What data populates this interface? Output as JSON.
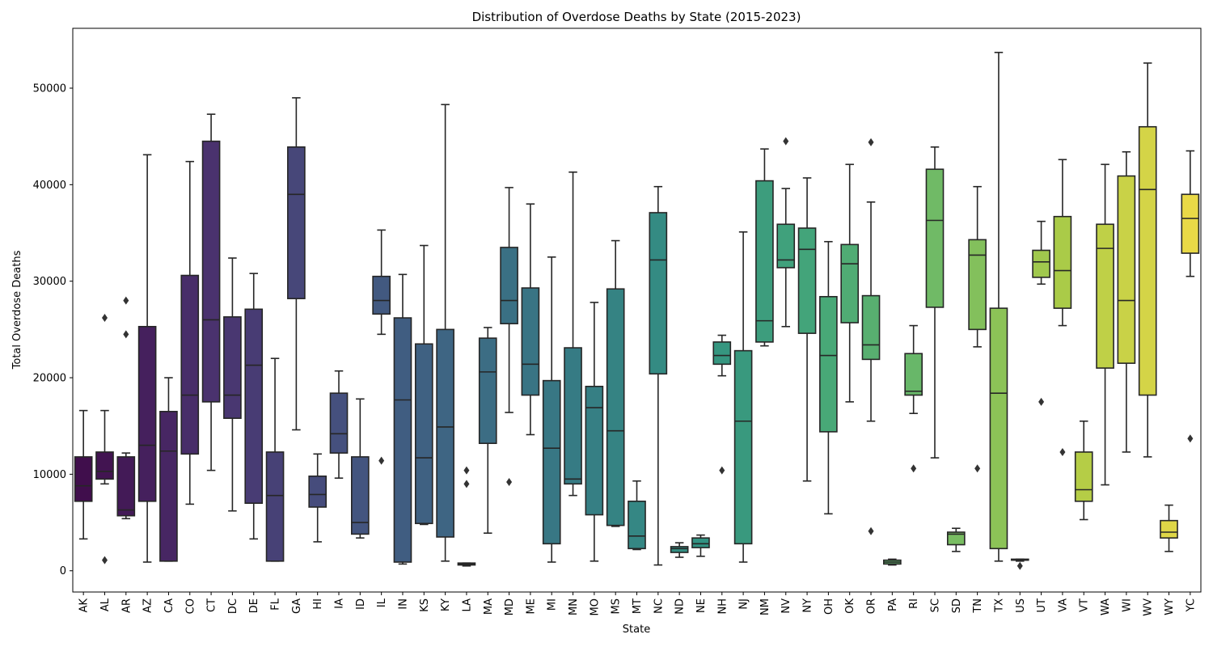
{
  "chart_data": {
    "type": "box",
    "title": "Distribution of Overdose Deaths by State (2015-2023)",
    "xlabel": "State",
    "ylabel": "Total Overdose Deaths",
    "ylim": [
      -2200,
      56200
    ],
    "yticks": [
      0,
      10000,
      20000,
      30000,
      40000,
      50000
    ],
    "ytick_labels": [
      "0",
      "10000",
      "20000",
      "30000",
      "40000",
      "50000"
    ],
    "grid": false,
    "legend": "none",
    "colormap": "viridis",
    "categories": [
      "AK",
      "AL",
      "AR",
      "AZ",
      "CA",
      "CO",
      "CT",
      "DC",
      "DE",
      "FL",
      "GA",
      "HI",
      "IA",
      "ID",
      "IL",
      "IN",
      "KS",
      "KY",
      "LA",
      "MA",
      "MD",
      "ME",
      "MI",
      "MN",
      "MO",
      "MS",
      "MT",
      "NC",
      "ND",
      "NE",
      "NH",
      "NJ",
      "NM",
      "NV",
      "NY",
      "OH",
      "OK",
      "OR",
      "PA",
      "RI",
      "SC",
      "SD",
      "TN",
      "TX",
      "US",
      "UT",
      "VA",
      "VT",
      "WA",
      "WI",
      "WV",
      "WY",
      "YC"
    ],
    "boxes": [
      {
        "state": "AK",
        "whislo": 3300,
        "q1": 7200,
        "med": 8800,
        "q3": 11800,
        "whishi": 16600,
        "fliers": []
      },
      {
        "state": "AL",
        "whislo": 9000,
        "q1": 9500,
        "med": 10300,
        "q3": 12300,
        "whishi": 16600,
        "fliers": [
          26200,
          1100
        ]
      },
      {
        "state": "AR",
        "whislo": 5400,
        "q1": 5700,
        "med": 6300,
        "q3": 11800,
        "whishi": 12200,
        "fliers": [
          28000,
          24500
        ]
      },
      {
        "state": "AZ",
        "whislo": 900,
        "q1": 7200,
        "med": 13000,
        "q3": 25300,
        "whishi": 43100,
        "fliers": []
      },
      {
        "state": "CA",
        "whislo": 1000,
        "q1": 1000,
        "med": 12400,
        "q3": 16500,
        "whishi": 20000,
        "fliers": []
      },
      {
        "state": "CO",
        "whislo": 6900,
        "q1": 12100,
        "med": 18200,
        "q3": 30600,
        "whishi": 42400,
        "fliers": []
      },
      {
        "state": "CT",
        "whislo": 10400,
        "q1": 17500,
        "med": 26000,
        "q3": 44500,
        "whishi": 47300,
        "fliers": []
      },
      {
        "state": "DC",
        "whislo": 6200,
        "q1": 15800,
        "med": 18200,
        "q3": 26300,
        "whishi": 32400,
        "fliers": []
      },
      {
        "state": "DE",
        "whislo": 3300,
        "q1": 7000,
        "med": 21300,
        "q3": 27100,
        "whishi": 30800,
        "fliers": []
      },
      {
        "state": "FL",
        "whislo": 1000,
        "q1": 1000,
        "med": 7800,
        "q3": 12300,
        "whishi": 22000,
        "fliers": []
      },
      {
        "state": "GA",
        "whislo": 14600,
        "q1": 28200,
        "med": 39000,
        "q3": 43900,
        "whishi": 49000,
        "fliers": []
      },
      {
        "state": "HI",
        "whislo": 3000,
        "q1": 6600,
        "med": 7900,
        "q3": 9800,
        "whishi": 12100,
        "fliers": []
      },
      {
        "state": "IA",
        "whislo": 9600,
        "q1": 12200,
        "med": 14200,
        "q3": 18400,
        "whishi": 20700,
        "fliers": []
      },
      {
        "state": "ID",
        "whislo": 3400,
        "q1": 3800,
        "med": 5000,
        "q3": 11800,
        "whishi": 17800,
        "fliers": []
      },
      {
        "state": "IL",
        "whislo": 24500,
        "q1": 26600,
        "med": 28000,
        "q3": 30500,
        "whishi": 35300,
        "fliers": [
          11400
        ]
      },
      {
        "state": "IN",
        "whislo": 700,
        "q1": 900,
        "med": 17700,
        "q3": 26200,
        "whishi": 30700,
        "fliers": []
      },
      {
        "state": "KS",
        "whislo": 4800,
        "q1": 4900,
        "med": 11700,
        "q3": 23500,
        "whishi": 33700,
        "fliers": []
      },
      {
        "state": "KY",
        "whislo": 1000,
        "q1": 3500,
        "med": 14900,
        "q3": 25000,
        "whishi": 48300,
        "fliers": []
      },
      {
        "state": "LA",
        "whislo": 500,
        "q1": 600,
        "med": 700,
        "q3": 800,
        "whishi": 800,
        "fliers": [
          10400,
          9000
        ]
      },
      {
        "state": "MA",
        "whislo": 3900,
        "q1": 13200,
        "med": 20600,
        "q3": 24100,
        "whishi": 25200,
        "fliers": []
      },
      {
        "state": "MD",
        "whislo": 16400,
        "q1": 25600,
        "med": 28000,
        "q3": 33500,
        "whishi": 39700,
        "fliers": [
          9200
        ]
      },
      {
        "state": "ME",
        "whislo": 14100,
        "q1": 18200,
        "med": 21400,
        "q3": 29300,
        "whishi": 38000,
        "fliers": []
      },
      {
        "state": "MI",
        "whislo": 900,
        "q1": 2800,
        "med": 12700,
        "q3": 19700,
        "whishi": 32500,
        "fliers": []
      },
      {
        "state": "MN",
        "whislo": 7800,
        "q1": 9000,
        "med": 9500,
        "q3": 23100,
        "whishi": 41300,
        "fliers": []
      },
      {
        "state": "MO",
        "whislo": 1000,
        "q1": 5800,
        "med": 16900,
        "q3": 19100,
        "whishi": 27800,
        "fliers": []
      },
      {
        "state": "MS",
        "whislo": 4600,
        "q1": 4700,
        "med": 14500,
        "q3": 29200,
        "whishi": 34200,
        "fliers": []
      },
      {
        "state": "MT",
        "whislo": 2200,
        "q1": 2300,
        "med": 3600,
        "q3": 7200,
        "whishi": 9300,
        "fliers": []
      },
      {
        "state": "NC",
        "whislo": 600,
        "q1": 20400,
        "med": 32200,
        "q3": 37100,
        "whishi": 39800,
        "fliers": []
      },
      {
        "state": "ND",
        "whislo": 1400,
        "q1": 1900,
        "med": 2300,
        "q3": 2500,
        "whishi": 2900,
        "fliers": []
      },
      {
        "state": "NE",
        "whislo": 1500,
        "q1": 2400,
        "med": 2800,
        "q3": 3400,
        "whishi": 3700,
        "fliers": []
      },
      {
        "state": "NH",
        "whislo": 20200,
        "q1": 21400,
        "med": 22300,
        "q3": 23700,
        "whishi": 24400,
        "fliers": [
          10400
        ]
      },
      {
        "state": "NJ",
        "whislo": 900,
        "q1": 2800,
        "med": 15500,
        "q3": 22800,
        "whishi": 35100,
        "fliers": []
      },
      {
        "state": "NM",
        "whislo": 23300,
        "q1": 23700,
        "med": 25900,
        "q3": 40400,
        "whishi": 43700,
        "fliers": []
      },
      {
        "state": "NV",
        "whislo": 25300,
        "q1": 31400,
        "med": 32200,
        "q3": 35900,
        "whishi": 39600,
        "fliers": [
          44500
        ]
      },
      {
        "state": "NY",
        "whislo": 9300,
        "q1": 24600,
        "med": 33300,
        "q3": 35500,
        "whishi": 40700,
        "fliers": []
      },
      {
        "state": "OH",
        "whislo": 5900,
        "q1": 14400,
        "med": 22300,
        "q3": 28400,
        "whishi": 34100,
        "fliers": []
      },
      {
        "state": "OK",
        "whislo": 17500,
        "q1": 25700,
        "med": 31800,
        "q3": 33800,
        "whishi": 42100,
        "fliers": []
      },
      {
        "state": "OR",
        "whislo": 15500,
        "q1": 21900,
        "med": 23400,
        "q3": 28500,
        "whishi": 38200,
        "fliers": [
          44400,
          4100
        ]
      },
      {
        "state": "PA",
        "whislo": 600,
        "q1": 700,
        "med": 900,
        "q3": 1100,
        "whishi": 1200,
        "fliers": []
      },
      {
        "state": "RI",
        "whislo": 16300,
        "q1": 18200,
        "med": 18600,
        "q3": 22500,
        "whishi": 25400,
        "fliers": [
          10600
        ]
      },
      {
        "state": "SC",
        "whislo": 11700,
        "q1": 27300,
        "med": 36300,
        "q3": 41600,
        "whishi": 43900,
        "fliers": []
      },
      {
        "state": "SD",
        "whislo": 2000,
        "q1": 2700,
        "med": 3800,
        "q3": 4000,
        "whishi": 4400,
        "fliers": []
      },
      {
        "state": "TN",
        "whislo": 23200,
        "q1": 25000,
        "med": 32700,
        "q3": 34300,
        "whishi": 39800,
        "fliers": [
          10600
        ]
      },
      {
        "state": "TX",
        "whislo": 1000,
        "q1": 2300,
        "med": 18400,
        "q3": 27200,
        "whishi": 53700,
        "fliers": []
      },
      {
        "state": "US",
        "whislo": 1000,
        "q1": 1100,
        "med": 1100,
        "q3": 1200,
        "whishi": 1200,
        "fliers": [
          500
        ]
      },
      {
        "state": "UT",
        "whislo": 29700,
        "q1": 30400,
        "med": 32000,
        "q3": 33200,
        "whishi": 36200,
        "fliers": [
          17500
        ]
      },
      {
        "state": "VA",
        "whislo": 25400,
        "q1": 27200,
        "med": 31100,
        "q3": 36700,
        "whishi": 42600,
        "fliers": [
          12300
        ]
      },
      {
        "state": "VT",
        "whislo": 5300,
        "q1": 7200,
        "med": 8400,
        "q3": 12300,
        "whishi": 15500,
        "fliers": []
      },
      {
        "state": "WA",
        "whislo": 8900,
        "q1": 21000,
        "med": 33400,
        "q3": 35900,
        "whishi": 42100,
        "fliers": []
      },
      {
        "state": "WI",
        "whislo": 12300,
        "q1": 21500,
        "med": 28000,
        "q3": 40900,
        "whishi": 43400,
        "fliers": []
      },
      {
        "state": "WV",
        "whislo": 11800,
        "q1": 18200,
        "med": 39500,
        "q3": 46000,
        "whishi": 52600,
        "fliers": []
      },
      {
        "state": "WY",
        "whislo": 2000,
        "q1": 3400,
        "med": 4000,
        "q3": 5200,
        "whishi": 6800,
        "fliers": []
      },
      {
        "state": "YC",
        "whislo": 30500,
        "q1": 32900,
        "med": 36500,
        "q3": 39000,
        "whishi": 43500,
        "fliers": [
          13700
        ]
      }
    ]
  }
}
